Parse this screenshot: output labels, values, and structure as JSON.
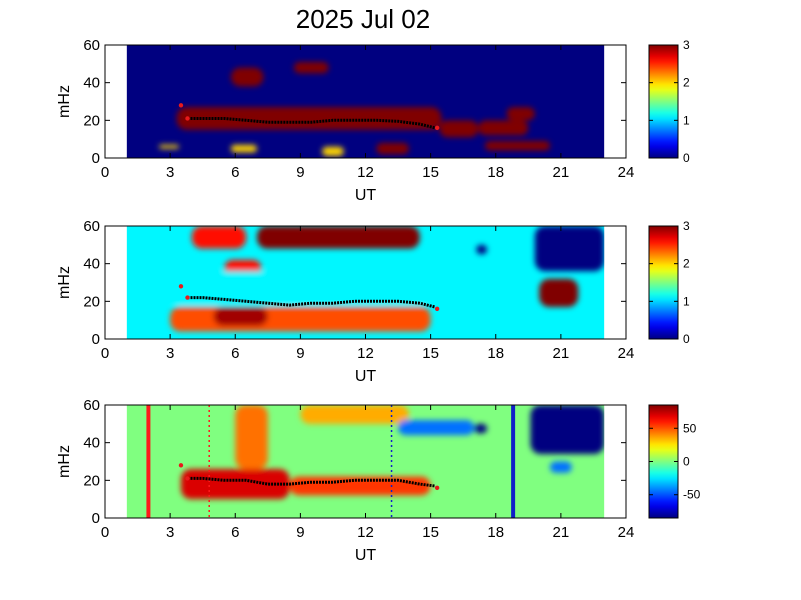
{
  "title": "2025 Jul 02",
  "colors": {
    "ridge_trace": "#000000",
    "marker": "#e8191b",
    "line_red": "#ff1a1a",
    "line_blue": "#1020c8",
    "background_dark": "#00008f"
  },
  "chart_data": [
    {
      "type": "heatmap",
      "panel": "top",
      "xlabel": "UT",
      "ylabel": "mHz",
      "xlim": [
        0,
        24
      ],
      "ylim": [
        0,
        60
      ],
      "xticks": [
        "0",
        "3",
        "6",
        "9",
        "12",
        "15",
        "18",
        "21",
        "24"
      ],
      "yticks": [
        "0",
        "20",
        "40",
        "60"
      ],
      "data_extent_ut": [
        1.0,
        23.0
      ],
      "colorbar": {
        "min": 0,
        "max": 3,
        "ticks": [
          "0",
          "1",
          "2",
          "3"
        ]
      },
      "ridge_trace": [
        [
          3.8,
          21
        ],
        [
          4.5,
          21
        ],
        [
          5.5,
          21
        ],
        [
          6.5,
          20
        ],
        [
          7.5,
          19
        ],
        [
          8.5,
          19
        ],
        [
          9.5,
          19
        ],
        [
          10.5,
          20
        ],
        [
          11.5,
          20
        ],
        [
          12.5,
          20
        ],
        [
          13.5,
          19.5
        ],
        [
          14.5,
          18
        ],
        [
          15.2,
          16
        ]
      ],
      "markers": [
        [
          3.5,
          28
        ],
        [
          3.8,
          21
        ],
        [
          15.3,
          16
        ]
      ],
      "features": [
        {
          "ut": [
            3.3,
            15.5
          ],
          "mhz": [
            15,
            27
          ],
          "level": 3
        },
        {
          "ut": [
            5.8,
            7.3
          ],
          "mhz": [
            38,
            48
          ],
          "level": 3
        },
        {
          "ut": [
            8.7,
            10.3
          ],
          "mhz": [
            45,
            51
          ],
          "level": 3
        },
        {
          "ut": [
            15.4,
            17.2
          ],
          "mhz": [
            11,
            20
          ],
          "level": 3
        },
        {
          "ut": [
            17.2,
            19.5
          ],
          "mhz": [
            12,
            20
          ],
          "level": 3
        },
        {
          "ut": [
            18.5,
            19.8
          ],
          "mhz": [
            20,
            27
          ],
          "level": 3
        },
        {
          "ut": [
            17.5,
            20.5
          ],
          "mhz": [
            4,
            9
          ],
          "level": 3
        },
        {
          "ut": [
            12.5,
            14.0
          ],
          "mhz": [
            2,
            8
          ],
          "level": 3
        },
        {
          "ut": [
            10.0,
            11.0
          ],
          "mhz": [
            1,
            6
          ],
          "level": 2
        },
        {
          "ut": [
            2.5,
            3.4
          ],
          "mhz": [
            5,
            7
          ],
          "level": 2
        },
        {
          "ut": [
            5.8,
            7.0
          ],
          "mhz": [
            3,
            7
          ],
          "level": 2
        }
      ]
    },
    {
      "type": "heatmap",
      "panel": "middle",
      "xlabel": "UT",
      "ylabel": "mHz",
      "xlim": [
        0,
        24
      ],
      "ylim": [
        0,
        60
      ],
      "xticks": [
        "0",
        "3",
        "6",
        "9",
        "12",
        "15",
        "18",
        "21",
        "24"
      ],
      "yticks": [
        "0",
        "20",
        "40",
        "60"
      ],
      "data_extent_ut": [
        1.0,
        23.0
      ],
      "colorbar": {
        "min": 0,
        "max": 3,
        "ticks": [
          "0",
          "1",
          "2",
          "3"
        ]
      },
      "ridge_trace": [
        [
          3.8,
          22
        ],
        [
          4.5,
          22
        ],
        [
          5.5,
          21
        ],
        [
          6.5,
          20
        ],
        [
          7.5,
          19
        ],
        [
          8.5,
          18
        ],
        [
          9.5,
          19
        ],
        [
          10.5,
          19
        ],
        [
          11.5,
          20
        ],
        [
          12.5,
          20
        ],
        [
          13.5,
          20
        ],
        [
          14.5,
          19
        ],
        [
          15.2,
          17
        ]
      ],
      "markers": [
        [
          3.5,
          28
        ],
        [
          3.8,
          22
        ],
        [
          15.3,
          16
        ]
      ],
      "features": [
        {
          "ut": [
            7.0,
            14.5
          ],
          "mhz": [
            48,
            60
          ],
          "level": 3
        },
        {
          "ut": [
            4.0,
            6.5
          ],
          "mhz": [
            48,
            60
          ],
          "level": 2.6
        },
        {
          "ut": [
            5.5,
            7.2
          ],
          "mhz": [
            33,
            42
          ],
          "level": 2.6
        },
        {
          "ut": [
            3.0,
            15.0
          ],
          "mhz": [
            4,
            17
          ],
          "level": 2.4
        },
        {
          "ut": [
            5.0,
            7.5
          ],
          "mhz": [
            7,
            17
          ],
          "level": 2.9
        },
        {
          "ut": [
            3.0,
            15.0
          ],
          "mhz": [
            18,
            36
          ],
          "level": 1.1
        },
        {
          "ut": [
            20.0,
            21.8
          ],
          "mhz": [
            17,
            32
          ],
          "level": 3
        },
        {
          "ut": [
            17.1,
            17.6
          ],
          "mhz": [
            45,
            50
          ],
          "level": 0
        },
        {
          "ut": [
            19.8,
            23.0
          ],
          "mhz": [
            36,
            60
          ],
          "level": 0
        }
      ]
    },
    {
      "type": "heatmap",
      "panel": "bottom",
      "xlabel": "UT",
      "ylabel": "mHz",
      "xlim": [
        0,
        24
      ],
      "ylim": [
        0,
        60
      ],
      "xticks": [
        "0",
        "3",
        "6",
        "9",
        "12",
        "15",
        "18",
        "21",
        "24"
      ],
      "yticks": [
        "0",
        "20",
        "40",
        "60"
      ],
      "data_extent_ut": [
        1.0,
        23.0
      ],
      "colorbar": {
        "min": -85,
        "max": 85,
        "ticks": [
          "50",
          "0",
          "-50"
        ]
      },
      "ridge_trace": [
        [
          3.8,
          21
        ],
        [
          4.5,
          21
        ],
        [
          5.5,
          20
        ],
        [
          6.5,
          20
        ],
        [
          7.5,
          18
        ],
        [
          8.5,
          18
        ],
        [
          9.5,
          19
        ],
        [
          10.5,
          19
        ],
        [
          11.5,
          20
        ],
        [
          12.5,
          20
        ],
        [
          13.5,
          20
        ],
        [
          14.5,
          18
        ],
        [
          15.2,
          17
        ]
      ],
      "markers": [
        [
          3.5,
          28
        ],
        [
          3.8,
          21
        ],
        [
          15.3,
          16
        ]
      ],
      "vertical_lines": [
        {
          "ut": 2.0,
          "style": "solid",
          "color": "red"
        },
        {
          "ut": 4.8,
          "style": "dotted",
          "color": "red"
        },
        {
          "ut": 13.2,
          "style": "dotted",
          "color": "blue"
        },
        {
          "ut": 18.8,
          "style": "solid",
          "color": "blue"
        }
      ],
      "features": [
        {
          "ut": [
            3.5,
            8.5
          ],
          "mhz": [
            10,
            26
          ],
          "level": 70
        },
        {
          "ut": [
            6.0,
            7.5
          ],
          "mhz": [
            26,
            60
          ],
          "level": 45
        },
        {
          "ut": [
            8.5,
            15.0
          ],
          "mhz": [
            12,
            22
          ],
          "level": 55
        },
        {
          "ut": [
            9.0,
            14.0
          ],
          "mhz": [
            50,
            60
          ],
          "level": 35
        },
        {
          "ut": [
            13.5,
            17.0
          ],
          "mhz": [
            44,
            52
          ],
          "level": -45
        },
        {
          "ut": [
            17.0,
            17.6
          ],
          "mhz": [
            45,
            50
          ],
          "level": -85
        },
        {
          "ut": [
            19.6,
            23.0
          ],
          "mhz": [
            34,
            60
          ],
          "level": -85
        },
        {
          "ut": [
            20.5,
            21.5
          ],
          "mhz": [
            24,
            30
          ],
          "level": -45
        }
      ]
    }
  ]
}
